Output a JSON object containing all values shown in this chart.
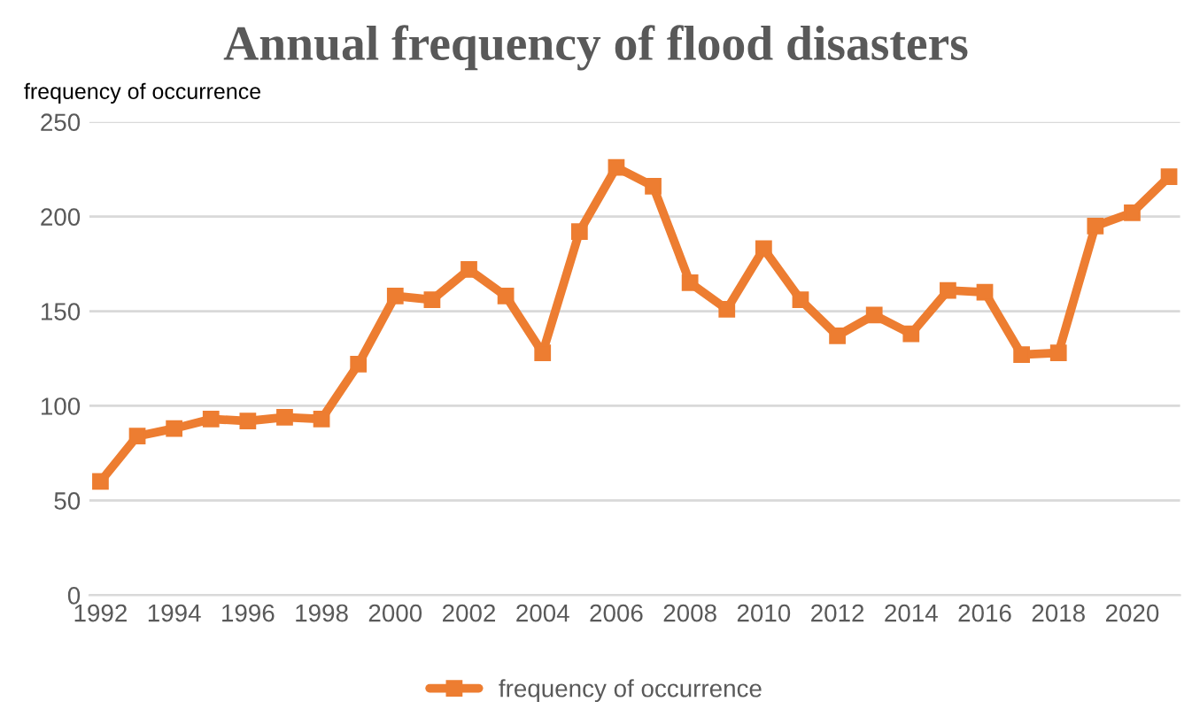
{
  "chart_data": {
    "type": "line",
    "title": "Annual frequency of flood disasters",
    "ylabel": "frequency of occurrence",
    "categories": [
      "1992",
      null,
      "1994",
      null,
      "1996",
      null,
      "1998",
      null,
      "2000",
      null,
      "2002",
      null,
      "2004",
      null,
      "2006",
      null,
      "2008",
      null,
      "2010",
      null,
      "2012",
      null,
      "2014",
      null,
      "2016",
      null,
      "2018",
      null,
      "2020",
      null
    ],
    "series": [
      {
        "name": "frequency of occurrence",
        "color": "#ed7d31",
        "values": [
          60,
          84,
          88,
          93,
          92,
          94,
          93,
          122,
          158,
          156,
          172,
          158,
          128,
          192,
          226,
          216,
          165,
          151,
          183,
          156,
          137,
          148,
          138,
          161,
          160,
          127,
          128,
          195,
          202,
          221
        ]
      }
    ],
    "ylim": [
      0,
      250
    ],
    "yticks": [
      0,
      50,
      100,
      150,
      200,
      250
    ],
    "grid": "y",
    "legend": "bottom",
    "marker": "square",
    "line_style": "solid"
  }
}
